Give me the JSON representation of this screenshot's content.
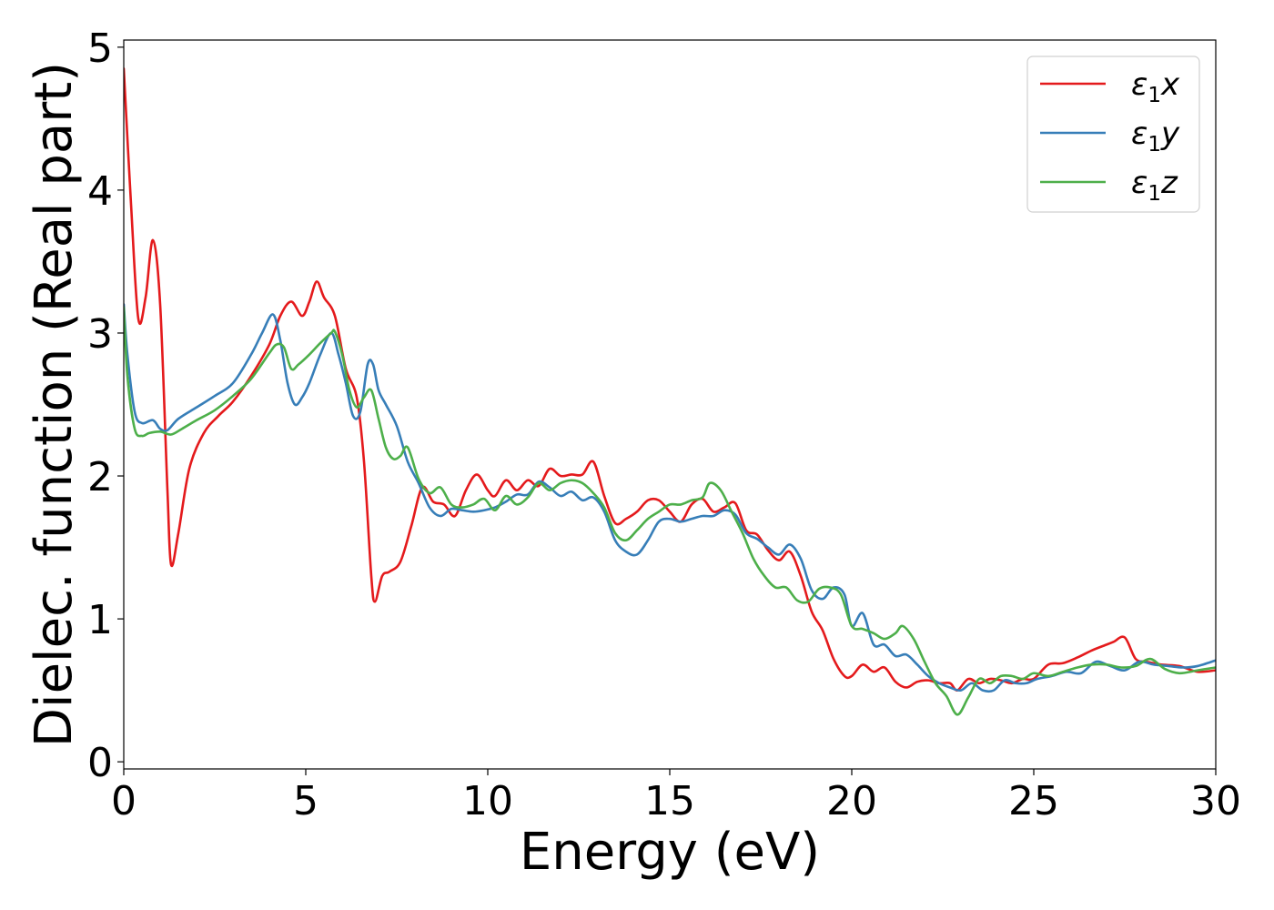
{
  "chart_data": {
    "type": "line",
    "xlabel": "Energy (eV)",
    "ylabel": "Dielec. function (Real part)",
    "xlim": [
      0,
      30
    ],
    "ylim": [
      -0.05,
      5.05
    ],
    "xticks": [
      0,
      5,
      10,
      15,
      20,
      25,
      30
    ],
    "yticks": [
      0,
      1,
      2,
      3,
      4,
      5
    ],
    "grid": false,
    "legend_position": "upper-right",
    "series": [
      {
        "name": "ε1x",
        "label_base": "ε",
        "label_sub": "1",
        "label_var": "x",
        "color": "#e41a1c",
        "x": [
          0.0,
          0.2,
          0.4,
          0.6,
          0.8,
          1.0,
          1.2,
          1.3,
          1.5,
          1.8,
          2.2,
          2.6,
          3.0,
          3.5,
          4.0,
          4.3,
          4.6,
          4.9,
          5.1,
          5.3,
          5.5,
          5.8,
          6.1,
          6.4,
          6.6,
          6.8,
          6.9,
          7.1,
          7.3,
          7.6,
          7.9,
          8.2,
          8.5,
          8.8,
          9.1,
          9.4,
          9.7,
          10.0,
          10.2,
          10.5,
          10.8,
          11.1,
          11.4,
          11.7,
          12.0,
          12.3,
          12.6,
          12.9,
          13.2,
          13.5,
          13.8,
          14.1,
          14.4,
          14.7,
          15.0,
          15.3,
          15.6,
          15.9,
          16.2,
          16.5,
          16.8,
          17.1,
          17.4,
          17.7,
          18.0,
          18.3,
          18.6,
          18.9,
          19.2,
          19.5,
          19.8,
          20.0,
          20.3,
          20.6,
          20.9,
          21.2,
          21.5,
          21.8,
          22.1,
          22.4,
          22.7,
          22.9,
          23.2,
          23.5,
          23.8,
          24.1,
          24.4,
          24.7,
          25.0,
          25.4,
          25.8,
          26.2,
          26.6,
          27.0,
          27.2,
          27.5,
          27.8,
          28.1,
          28.5,
          29.0,
          29.5,
          30.0
        ],
        "y": [
          4.85,
          3.9,
          3.1,
          3.25,
          3.65,
          3.2,
          1.9,
          1.38,
          1.6,
          2.05,
          2.3,
          2.42,
          2.52,
          2.7,
          2.92,
          3.12,
          3.22,
          3.12,
          3.22,
          3.36,
          3.25,
          3.12,
          2.75,
          2.55,
          2.1,
          1.3,
          1.12,
          1.3,
          1.33,
          1.4,
          1.65,
          1.92,
          1.82,
          1.8,
          1.72,
          1.9,
          2.01,
          1.9,
          1.86,
          1.97,
          1.9,
          1.97,
          1.93,
          2.05,
          2.0,
          2.01,
          2.01,
          2.1,
          1.86,
          1.67,
          1.7,
          1.75,
          1.83,
          1.83,
          1.75,
          1.68,
          1.8,
          1.84,
          1.75,
          1.78,
          1.81,
          1.62,
          1.59,
          1.48,
          1.41,
          1.47,
          1.3,
          1.05,
          0.92,
          0.72,
          0.6,
          0.6,
          0.68,
          0.63,
          0.66,
          0.56,
          0.52,
          0.56,
          0.57,
          0.55,
          0.55,
          0.5,
          0.58,
          0.55,
          0.58,
          0.57,
          0.55,
          0.58,
          0.58,
          0.68,
          0.69,
          0.73,
          0.78,
          0.82,
          0.84,
          0.87,
          0.72,
          0.7,
          0.68,
          0.67,
          0.63,
          0.64
        ]
      },
      {
        "name": "ε1y",
        "label_base": "ε",
        "label_sub": "1",
        "label_var": "y",
        "color": "#377eb8",
        "x": [
          0.0,
          0.1,
          0.3,
          0.5,
          0.8,
          1.0,
          1.2,
          1.5,
          2.0,
          2.5,
          3.0,
          3.5,
          3.8,
          4.1,
          4.3,
          4.5,
          4.7,
          4.9,
          5.1,
          5.4,
          5.7,
          5.9,
          6.1,
          6.3,
          6.5,
          6.7,
          6.85,
          7.0,
          7.2,
          7.5,
          7.8,
          8.1,
          8.4,
          8.7,
          9.0,
          9.3,
          9.6,
          9.9,
          10.2,
          10.5,
          10.8,
          11.1,
          11.4,
          11.7,
          12.0,
          12.3,
          12.6,
          12.9,
          13.2,
          13.5,
          13.8,
          14.1,
          14.4,
          14.7,
          15.0,
          15.3,
          15.6,
          15.9,
          16.2,
          16.5,
          16.8,
          17.1,
          17.4,
          17.7,
          18.0,
          18.3,
          18.6,
          18.9,
          19.2,
          19.5,
          19.8,
          20.0,
          20.3,
          20.6,
          20.9,
          21.2,
          21.5,
          21.8,
          22.1,
          22.4,
          22.7,
          23.0,
          23.3,
          23.6,
          23.9,
          24.2,
          24.5,
          24.8,
          25.1,
          25.5,
          25.9,
          26.3,
          26.7,
          27.1,
          27.5,
          27.9,
          28.3,
          28.7,
          29.1,
          29.5,
          30.0
        ],
        "y": [
          3.2,
          2.85,
          2.45,
          2.37,
          2.39,
          2.33,
          2.32,
          2.4,
          2.48,
          2.56,
          2.65,
          2.85,
          3.0,
          3.13,
          2.95,
          2.65,
          2.5,
          2.55,
          2.65,
          2.85,
          3.0,
          2.85,
          2.65,
          2.42,
          2.45,
          2.78,
          2.78,
          2.6,
          2.5,
          2.35,
          2.1,
          1.95,
          1.78,
          1.72,
          1.77,
          1.76,
          1.75,
          1.76,
          1.78,
          1.82,
          1.87,
          1.87,
          1.96,
          1.92,
          1.86,
          1.89,
          1.83,
          1.85,
          1.75,
          1.55,
          1.47,
          1.45,
          1.55,
          1.68,
          1.7,
          1.68,
          1.7,
          1.72,
          1.72,
          1.76,
          1.73,
          1.6,
          1.56,
          1.5,
          1.45,
          1.52,
          1.42,
          1.2,
          1.14,
          1.22,
          1.17,
          0.95,
          1.04,
          0.82,
          0.82,
          0.74,
          0.75,
          0.68,
          0.6,
          0.55,
          0.52,
          0.5,
          0.55,
          0.5,
          0.5,
          0.57,
          0.55,
          0.55,
          0.58,
          0.6,
          0.63,
          0.62,
          0.7,
          0.67,
          0.64,
          0.7,
          0.68,
          0.67,
          0.66,
          0.67,
          0.71
        ]
      },
      {
        "name": "ε1z",
        "label_base": "ε",
        "label_sub": "1",
        "label_var": "z",
        "color": "#4daf4a",
        "x": [
          0.0,
          0.1,
          0.3,
          0.5,
          0.7,
          1.0,
          1.3,
          1.6,
          2.0,
          2.5,
          3.0,
          3.5,
          4.0,
          4.2,
          4.4,
          4.6,
          4.8,
          5.1,
          5.4,
          5.7,
          5.8,
          6.0,
          6.2,
          6.4,
          6.6,
          6.8,
          7.0,
          7.2,
          7.4,
          7.6,
          7.8,
          8.1,
          8.4,
          8.7,
          9.0,
          9.3,
          9.6,
          9.9,
          10.2,
          10.5,
          10.8,
          11.1,
          11.4,
          11.7,
          12.0,
          12.3,
          12.6,
          12.9,
          13.2,
          13.5,
          13.8,
          14.1,
          14.4,
          14.7,
          15.0,
          15.3,
          15.6,
          15.9,
          16.1,
          16.4,
          16.7,
          17.0,
          17.3,
          17.6,
          17.9,
          18.2,
          18.5,
          18.8,
          19.1,
          19.4,
          19.7,
          20.0,
          20.3,
          20.6,
          20.9,
          21.2,
          21.4,
          21.7,
          22.0,
          22.3,
          22.6,
          22.9,
          23.2,
          23.5,
          23.8,
          24.1,
          24.4,
          24.7,
          25.0,
          25.4,
          25.8,
          26.2,
          26.6,
          27.0,
          27.4,
          27.8,
          28.2,
          28.6,
          29.0,
          29.5,
          30.0
        ],
        "y": [
          3.18,
          2.7,
          2.33,
          2.28,
          2.3,
          2.31,
          2.29,
          2.33,
          2.39,
          2.46,
          2.56,
          2.68,
          2.86,
          2.92,
          2.9,
          2.75,
          2.78,
          2.85,
          2.93,
          3.0,
          3.01,
          2.85,
          2.6,
          2.48,
          2.55,
          2.6,
          2.4,
          2.2,
          2.12,
          2.14,
          2.2,
          1.98,
          1.88,
          1.92,
          1.8,
          1.78,
          1.8,
          1.84,
          1.76,
          1.86,
          1.8,
          1.85,
          1.95,
          1.9,
          1.95,
          1.97,
          1.95,
          1.88,
          1.78,
          1.6,
          1.55,
          1.62,
          1.7,
          1.75,
          1.8,
          1.8,
          1.83,
          1.85,
          1.95,
          1.9,
          1.75,
          1.6,
          1.42,
          1.3,
          1.22,
          1.22,
          1.13,
          1.12,
          1.21,
          1.22,
          1.17,
          0.95,
          0.93,
          0.9,
          0.86,
          0.9,
          0.95,
          0.86,
          0.7,
          0.55,
          0.46,
          0.33,
          0.45,
          0.58,
          0.55,
          0.6,
          0.6,
          0.58,
          0.62,
          0.6,
          0.63,
          0.66,
          0.68,
          0.68,
          0.66,
          0.67,
          0.72,
          0.65,
          0.62,
          0.64,
          0.66
        ]
      }
    ]
  }
}
